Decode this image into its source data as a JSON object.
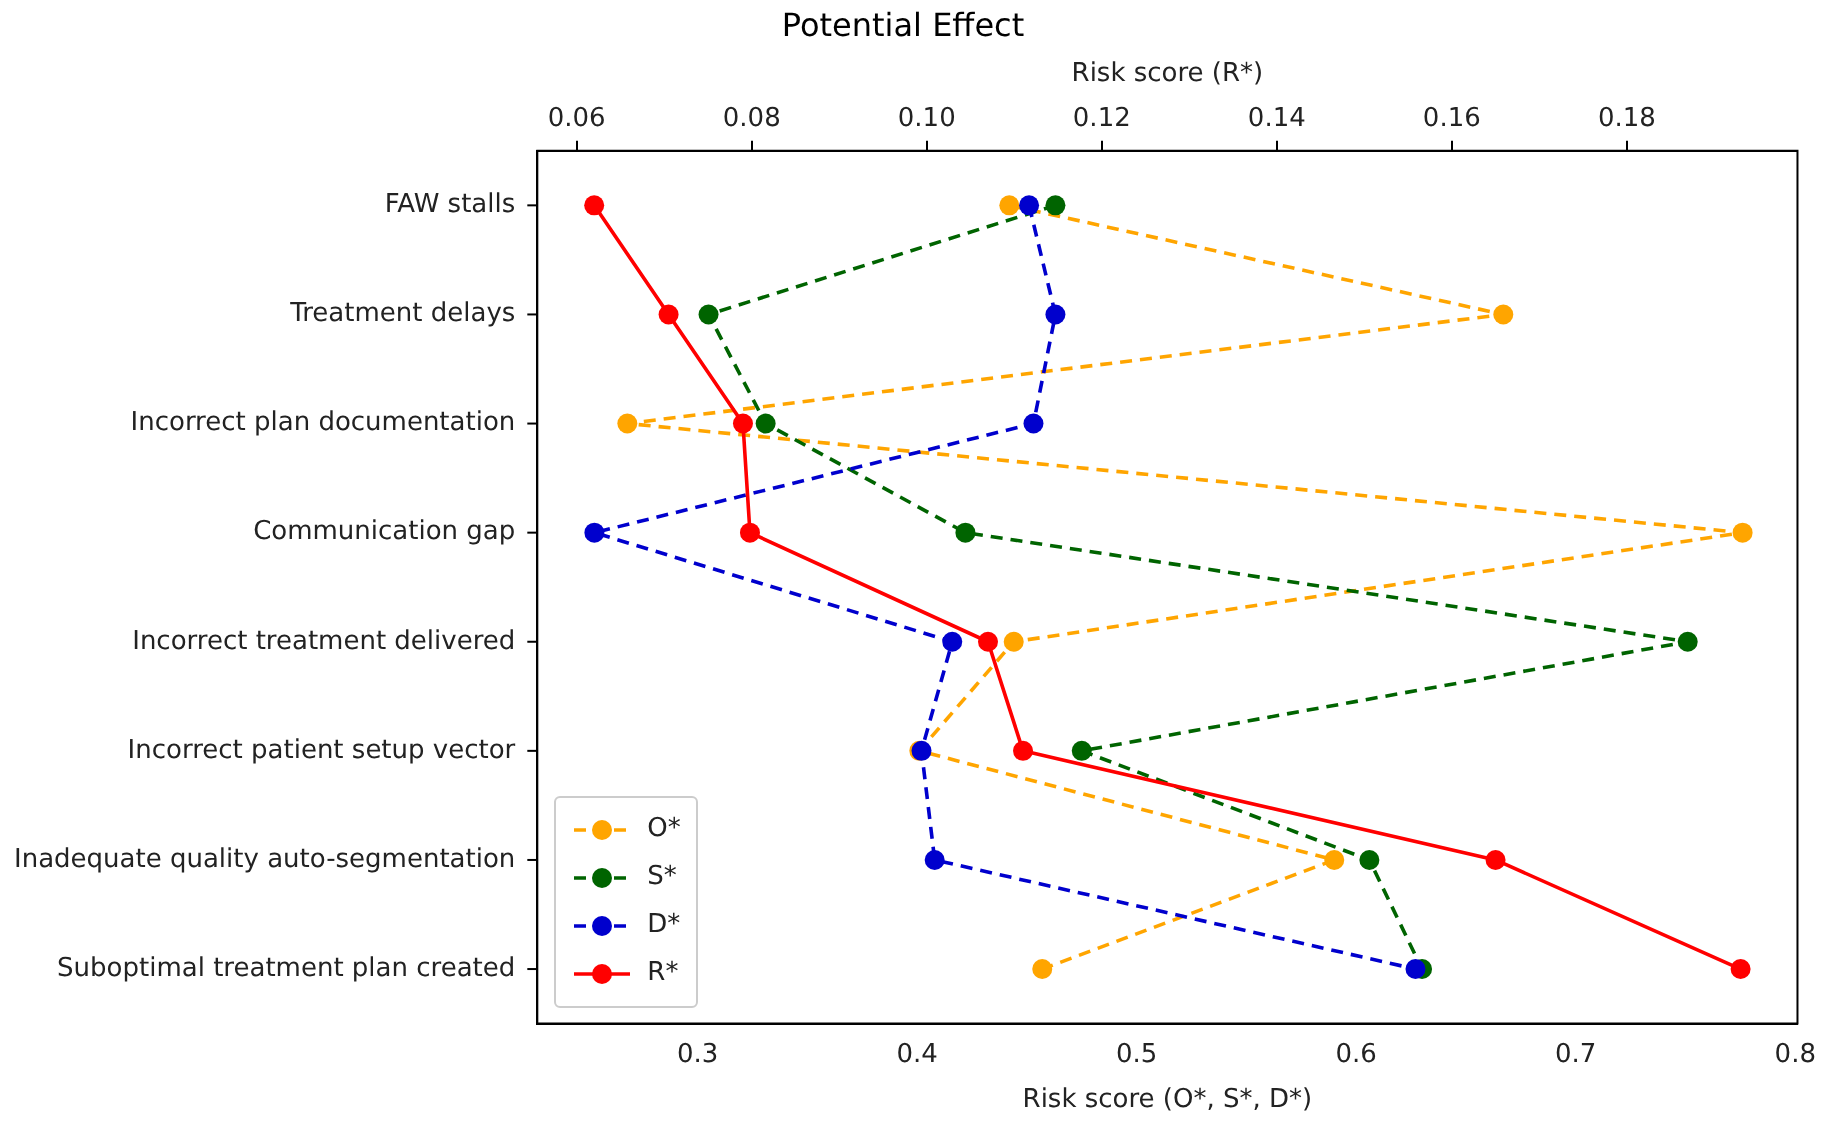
{
  "chart_data": {
    "type": "line",
    "orientation": "horizontal",
    "title": "Potential Effect",
    "xlabel": "Risk score (O*, S*, D*)",
    "x2label": "Risk score (R*)",
    "categories": [
      "FAW stalls",
      "Treatment delays",
      "Incorrect plan documentation",
      "Communication gap",
      "Incorrect treatment delivered",
      "Incorrect patient setup vector",
      "Inadequate quality auto-segmentation",
      "Suboptimal treatment plan created"
    ],
    "series": [
      {
        "name": "O*",
        "color": "#ffa500",
        "line_style": "dashed",
        "values": [
          0.442,
          0.667,
          0.268,
          0.776,
          0.444,
          0.401,
          0.59,
          0.457
        ]
      },
      {
        "name": "S*",
        "color": "#006400",
        "line_style": "dashed",
        "values": [
          0.463,
          0.305,
          0.331,
          0.422,
          0.751,
          0.475,
          0.606,
          0.63
        ]
      },
      {
        "name": "D*",
        "color": "#0000cd",
        "line_style": "dashed",
        "values": [
          0.451,
          0.463,
          0.453,
          0.253,
          0.416,
          0.402,
          0.408,
          0.627
        ]
      },
      {
        "name": "R*",
        "color": "#ff0000",
        "line_style": "solid",
        "axis": "x2",
        "values": [
          0.062,
          0.0705,
          0.079,
          0.0798,
          0.107,
          0.111,
          0.165,
          0.193
        ]
      }
    ],
    "xlim": [
      0.227,
      0.801
    ],
    "xticks": [
      0.3,
      0.4,
      0.5,
      0.6,
      0.7,
      0.8
    ],
    "x2lim": [
      0.0555,
      0.1995
    ],
    "x2ticks": [
      {
        "value": 0.06,
        "label": "0.06"
      },
      {
        "value": 0.08,
        "label": "0.08"
      },
      {
        "value": 0.1,
        "label": "0.10"
      },
      {
        "value": 0.12,
        "label": "0.12"
      },
      {
        "value": 0.14,
        "label": "0.14"
      },
      {
        "value": 0.16,
        "label": "0.16"
      },
      {
        "value": 0.18,
        "label": "0.18"
      }
    ],
    "grid": false,
    "legend": "bottom left",
    "marker": "circle"
  }
}
